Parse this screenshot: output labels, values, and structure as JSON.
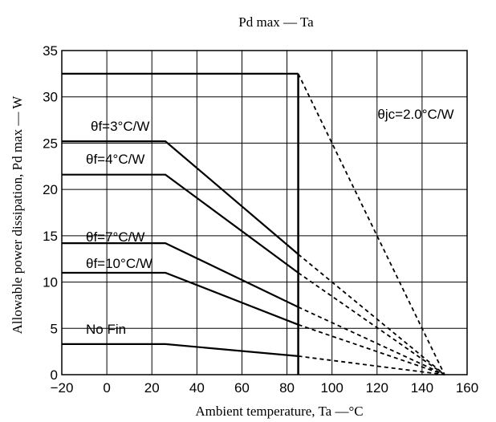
{
  "chart_data": {
    "type": "line",
    "title": "Pd max — Ta",
    "xlabel": "Ambient temperature, Ta —°C",
    "ylabel": "Allowable power dissipation, Pd max — W",
    "xlim": [
      -20,
      160
    ],
    "ylim": [
      0,
      35
    ],
    "x_ticks": [
      "−20",
      "0",
      "20",
      "40",
      "60",
      "80",
      "100",
      "120",
      "140",
      "160"
    ],
    "x_tick_values": [
      -20,
      0,
      20,
      40,
      60,
      80,
      100,
      120,
      140,
      160
    ],
    "y_ticks": [
      "0",
      "5",
      "10",
      "15",
      "20",
      "25",
      "30",
      "35"
    ],
    "y_tick_values": [
      0,
      5,
      10,
      15,
      20,
      25,
      30,
      35
    ],
    "grid": true,
    "boundary_x": 85,
    "annotation": "θjc=2.0°C/W",
    "series": [
      {
        "name": "",
        "points": [
          [
            -20,
            32.5
          ],
          [
            85,
            32.5
          ]
        ],
        "dashed_end": [
          150,
          0
        ]
      },
      {
        "name": "θf=3°C/W",
        "points": [
          [
            -20,
            25.2
          ],
          [
            26,
            25.2
          ],
          [
            85,
            13.0
          ]
        ],
        "dashed_end": [
          150,
          0
        ]
      },
      {
        "name": "θf=4°C/W",
        "points": [
          [
            -20,
            21.6
          ],
          [
            26,
            21.6
          ],
          [
            85,
            11.0
          ]
        ],
        "dashed_end": [
          150,
          0
        ]
      },
      {
        "name": "θf=7°C/W",
        "points": [
          [
            -20,
            14.2
          ],
          [
            26,
            14.2
          ],
          [
            85,
            7.3
          ]
        ],
        "dashed_end": [
          150,
          0
        ]
      },
      {
        "name": "θf=10°C/W",
        "points": [
          [
            -20,
            11.0
          ],
          [
            26,
            11.0
          ],
          [
            85,
            5.4
          ]
        ],
        "dashed_end": [
          150,
          0
        ]
      },
      {
        "name": "No Fin",
        "points": [
          [
            -20,
            3.3
          ],
          [
            26,
            3.3
          ],
          [
            85,
            2.0
          ]
        ],
        "dashed_end": [
          150,
          0
        ]
      }
    ]
  }
}
